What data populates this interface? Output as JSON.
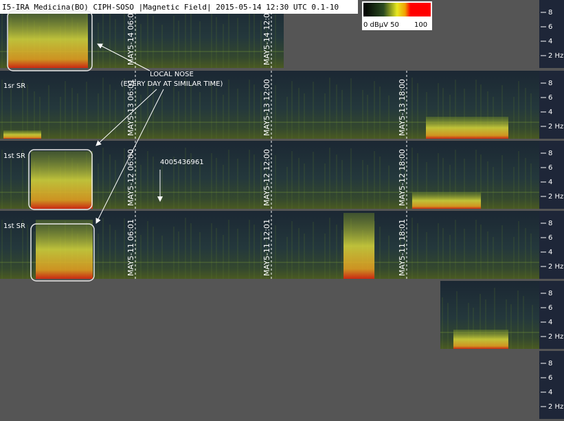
{
  "header": {
    "title": "I5-IRA Medicina(BO) CIPH-SOSO |Magnetic Field| 2015-05-14 12:30 UTC 0.1-10"
  },
  "colorbar": {
    "low_label": "0 dBµV 50",
    "high_label": "100"
  },
  "axis_labels": [
    "8",
    "6",
    "4",
    "2 Hz"
  ],
  "strips": [
    {
      "times": [
        "MAY5-14 06:00",
        "MAY5-14 12:01"
      ]
    },
    {
      "label": "1sr SR",
      "times": [
        "MAY5-13 06:01",
        "MAY5-13 12:00",
        "MAY5-13 18:00"
      ]
    },
    {
      "label": "1st SR",
      "times": [
        "MAY5-12 06:00",
        "MAY5-12 12:00",
        "MAY5-12 18:00"
      ]
    },
    {
      "label": "1st SR",
      "times": [
        "MAY5-11 06:01",
        "MAY5-11 12:01",
        "MAY5-11 18:01"
      ]
    }
  ],
  "annotations": {
    "nose_title": "LOCAL NOSE",
    "nose_note": "(EVERY DAY AT SIMILAR TIME)",
    "number": "4005436961"
  }
}
